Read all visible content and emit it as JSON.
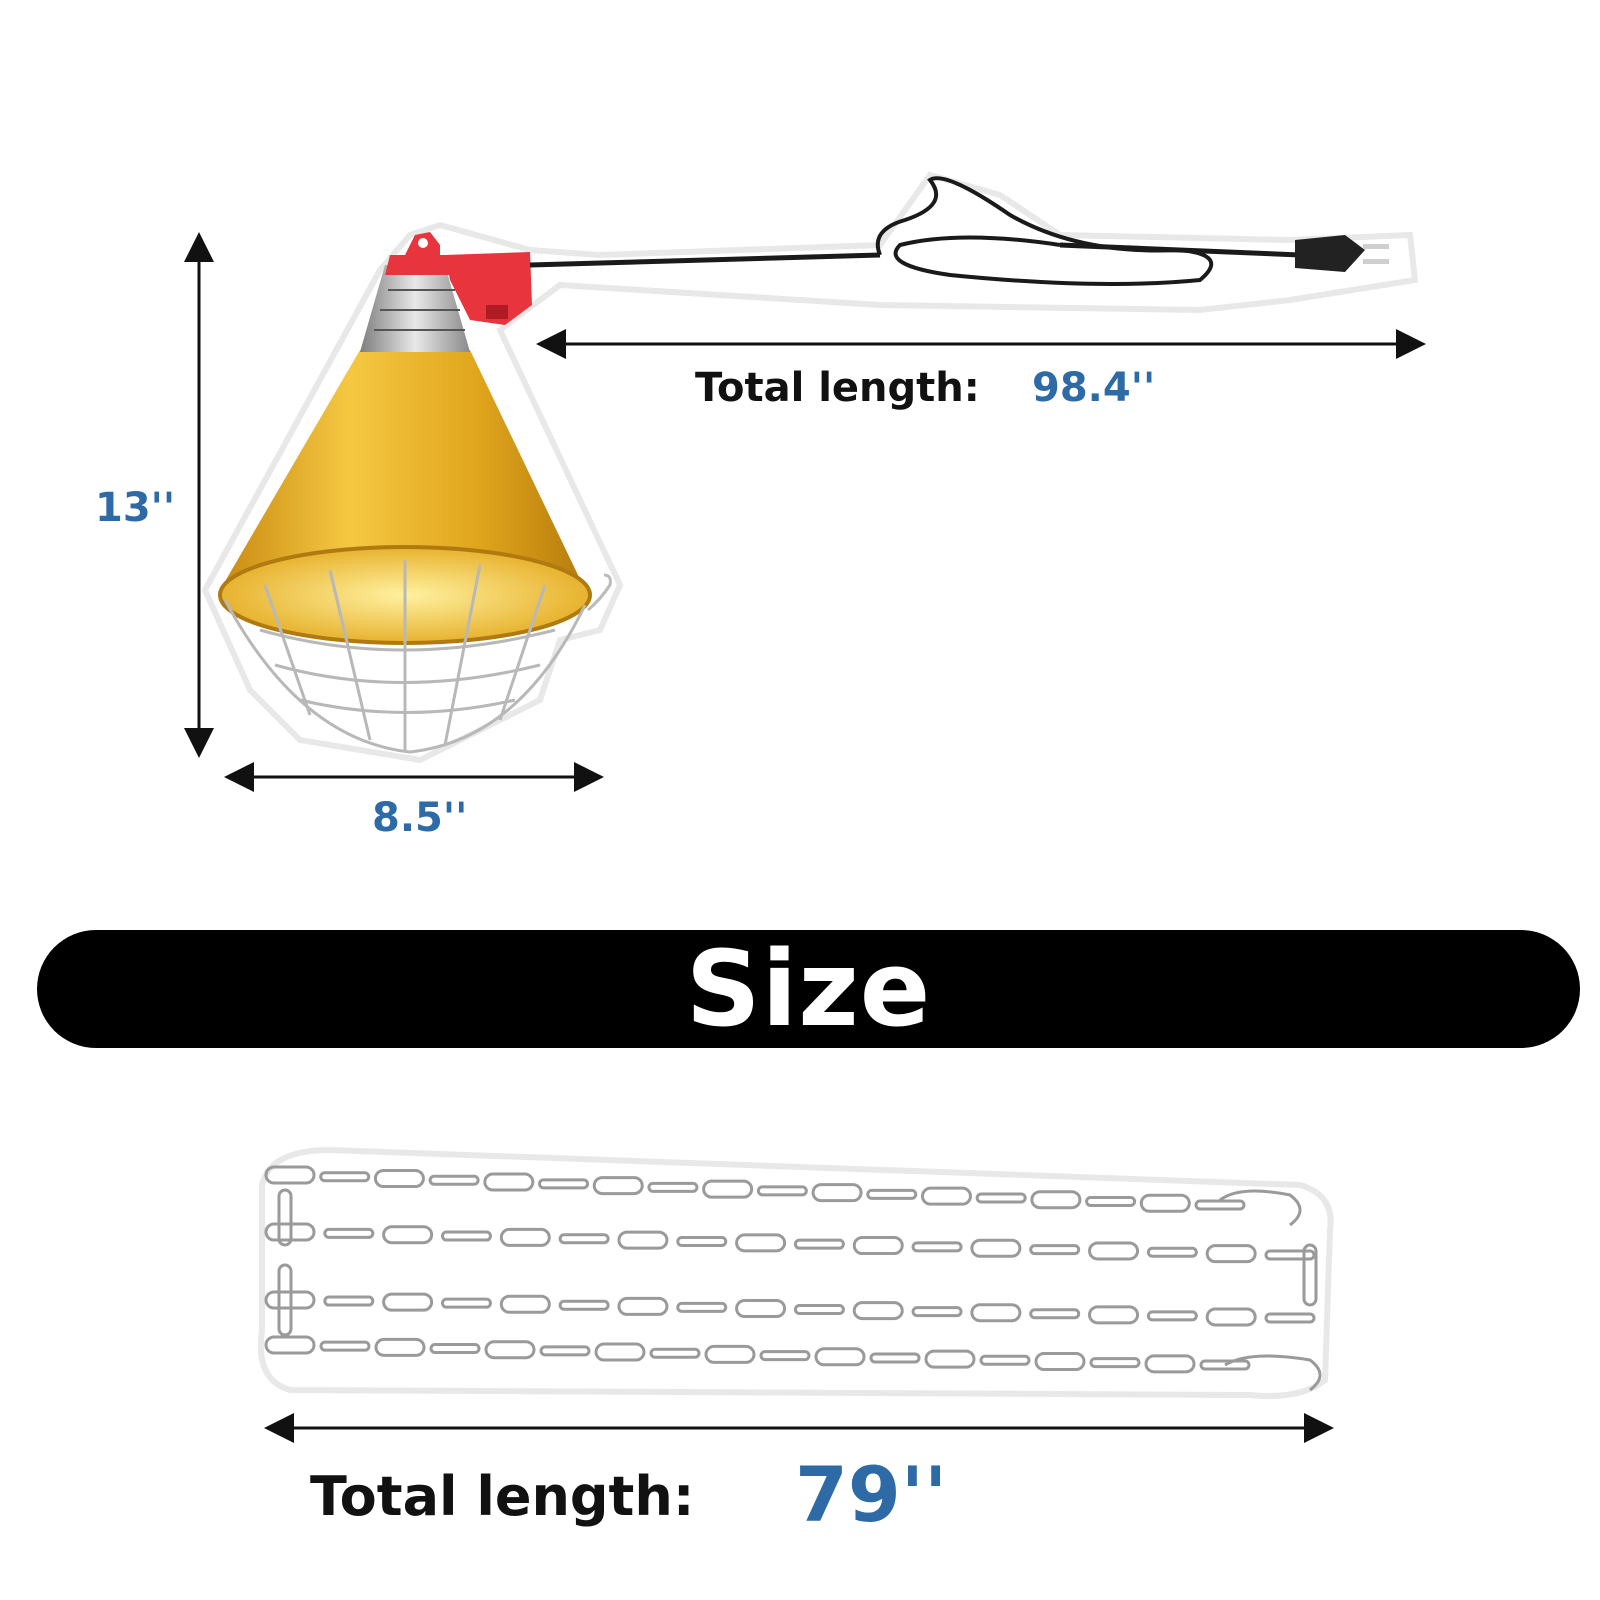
{
  "lamp": {
    "height_label": "13''",
    "width_label": "8.5''",
    "cord_label": "Total length:",
    "cord_value": "98.4''"
  },
  "banner": {
    "title": "Size"
  },
  "chain": {
    "label": "Total length:",
    "value": "79''"
  },
  "colors": {
    "accent_blue": "#2e6aa6",
    "lamp_gold": "#e8b820",
    "lamp_red": "#e8343c",
    "banner": "#000000"
  }
}
